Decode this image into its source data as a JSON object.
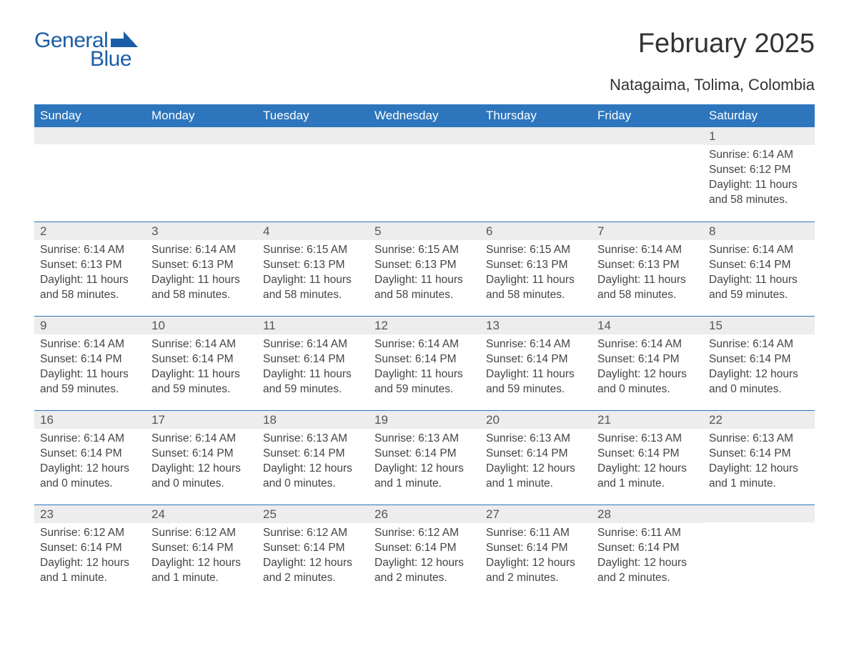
{
  "logo": {
    "word1": "General",
    "word2": "Blue",
    "brand_color": "#1b5da6"
  },
  "title": "February 2025",
  "location": "Natagaima, Tolima, Colombia",
  "header_bg": "#2d76bd",
  "header_fg": "#ffffff",
  "band_bg": "#ededed",
  "rule_color": "#2d76bd",
  "day_names": [
    "Sunday",
    "Monday",
    "Tuesday",
    "Wednesday",
    "Thursday",
    "Friday",
    "Saturday"
  ],
  "weeks": [
    [
      null,
      null,
      null,
      null,
      null,
      null,
      {
        "n": "1",
        "sunrise": "Sunrise: 6:14 AM",
        "sunset": "Sunset: 6:12 PM",
        "daylight": "Daylight: 11 hours and 58 minutes."
      }
    ],
    [
      {
        "n": "2",
        "sunrise": "Sunrise: 6:14 AM",
        "sunset": "Sunset: 6:13 PM",
        "daylight": "Daylight: 11 hours and 58 minutes."
      },
      {
        "n": "3",
        "sunrise": "Sunrise: 6:14 AM",
        "sunset": "Sunset: 6:13 PM",
        "daylight": "Daylight: 11 hours and 58 minutes."
      },
      {
        "n": "4",
        "sunrise": "Sunrise: 6:15 AM",
        "sunset": "Sunset: 6:13 PM",
        "daylight": "Daylight: 11 hours and 58 minutes."
      },
      {
        "n": "5",
        "sunrise": "Sunrise: 6:15 AM",
        "sunset": "Sunset: 6:13 PM",
        "daylight": "Daylight: 11 hours and 58 minutes."
      },
      {
        "n": "6",
        "sunrise": "Sunrise: 6:15 AM",
        "sunset": "Sunset: 6:13 PM",
        "daylight": "Daylight: 11 hours and 58 minutes."
      },
      {
        "n": "7",
        "sunrise": "Sunrise: 6:14 AM",
        "sunset": "Sunset: 6:13 PM",
        "daylight": "Daylight: 11 hours and 58 minutes."
      },
      {
        "n": "8",
        "sunrise": "Sunrise: 6:14 AM",
        "sunset": "Sunset: 6:14 PM",
        "daylight": "Daylight: 11 hours and 59 minutes."
      }
    ],
    [
      {
        "n": "9",
        "sunrise": "Sunrise: 6:14 AM",
        "sunset": "Sunset: 6:14 PM",
        "daylight": "Daylight: 11 hours and 59 minutes."
      },
      {
        "n": "10",
        "sunrise": "Sunrise: 6:14 AM",
        "sunset": "Sunset: 6:14 PM",
        "daylight": "Daylight: 11 hours and 59 minutes."
      },
      {
        "n": "11",
        "sunrise": "Sunrise: 6:14 AM",
        "sunset": "Sunset: 6:14 PM",
        "daylight": "Daylight: 11 hours and 59 minutes."
      },
      {
        "n": "12",
        "sunrise": "Sunrise: 6:14 AM",
        "sunset": "Sunset: 6:14 PM",
        "daylight": "Daylight: 11 hours and 59 minutes."
      },
      {
        "n": "13",
        "sunrise": "Sunrise: 6:14 AM",
        "sunset": "Sunset: 6:14 PM",
        "daylight": "Daylight: 11 hours and 59 minutes."
      },
      {
        "n": "14",
        "sunrise": "Sunrise: 6:14 AM",
        "sunset": "Sunset: 6:14 PM",
        "daylight": "Daylight: 12 hours and 0 minutes."
      },
      {
        "n": "15",
        "sunrise": "Sunrise: 6:14 AM",
        "sunset": "Sunset: 6:14 PM",
        "daylight": "Daylight: 12 hours and 0 minutes."
      }
    ],
    [
      {
        "n": "16",
        "sunrise": "Sunrise: 6:14 AM",
        "sunset": "Sunset: 6:14 PM",
        "daylight": "Daylight: 12 hours and 0 minutes."
      },
      {
        "n": "17",
        "sunrise": "Sunrise: 6:14 AM",
        "sunset": "Sunset: 6:14 PM",
        "daylight": "Daylight: 12 hours and 0 minutes."
      },
      {
        "n": "18",
        "sunrise": "Sunrise: 6:13 AM",
        "sunset": "Sunset: 6:14 PM",
        "daylight": "Daylight: 12 hours and 0 minutes."
      },
      {
        "n": "19",
        "sunrise": "Sunrise: 6:13 AM",
        "sunset": "Sunset: 6:14 PM",
        "daylight": "Daylight: 12 hours and 1 minute."
      },
      {
        "n": "20",
        "sunrise": "Sunrise: 6:13 AM",
        "sunset": "Sunset: 6:14 PM",
        "daylight": "Daylight: 12 hours and 1 minute."
      },
      {
        "n": "21",
        "sunrise": "Sunrise: 6:13 AM",
        "sunset": "Sunset: 6:14 PM",
        "daylight": "Daylight: 12 hours and 1 minute."
      },
      {
        "n": "22",
        "sunrise": "Sunrise: 6:13 AM",
        "sunset": "Sunset: 6:14 PM",
        "daylight": "Daylight: 12 hours and 1 minute."
      }
    ],
    [
      {
        "n": "23",
        "sunrise": "Sunrise: 6:12 AM",
        "sunset": "Sunset: 6:14 PM",
        "daylight": "Daylight: 12 hours and 1 minute."
      },
      {
        "n": "24",
        "sunrise": "Sunrise: 6:12 AM",
        "sunset": "Sunset: 6:14 PM",
        "daylight": "Daylight: 12 hours and 1 minute."
      },
      {
        "n": "25",
        "sunrise": "Sunrise: 6:12 AM",
        "sunset": "Sunset: 6:14 PM",
        "daylight": "Daylight: 12 hours and 2 minutes."
      },
      {
        "n": "26",
        "sunrise": "Sunrise: 6:12 AM",
        "sunset": "Sunset: 6:14 PM",
        "daylight": "Daylight: 12 hours and 2 minutes."
      },
      {
        "n": "27",
        "sunrise": "Sunrise: 6:11 AM",
        "sunset": "Sunset: 6:14 PM",
        "daylight": "Daylight: 12 hours and 2 minutes."
      },
      {
        "n": "28",
        "sunrise": "Sunrise: 6:11 AM",
        "sunset": "Sunset: 6:14 PM",
        "daylight": "Daylight: 12 hours and 2 minutes."
      },
      null
    ]
  ]
}
